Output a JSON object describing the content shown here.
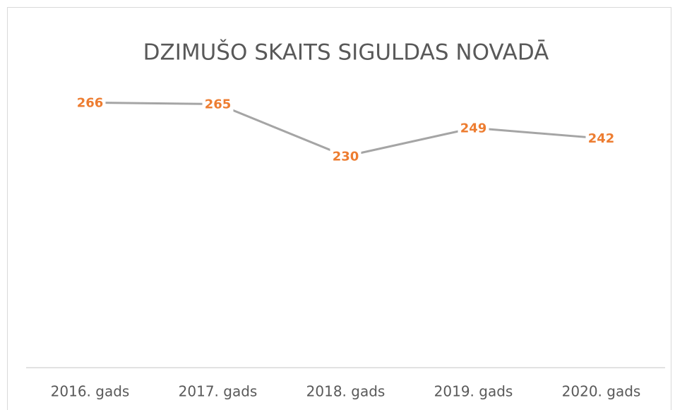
{
  "chart_data": {
    "type": "line",
    "title": "DZIMUŠO SKAITS SIGULDAS NOVADĀ",
    "categories": [
      "2016. gads",
      "2017. gads",
      "2018. gads",
      "2019. gads",
      "2020. gads"
    ],
    "values": [
      266,
      265,
      230,
      249,
      242
    ],
    "color": "#a5a5a5",
    "label_color": "#ed7d31",
    "ylim": [
      88,
      288
    ]
  }
}
